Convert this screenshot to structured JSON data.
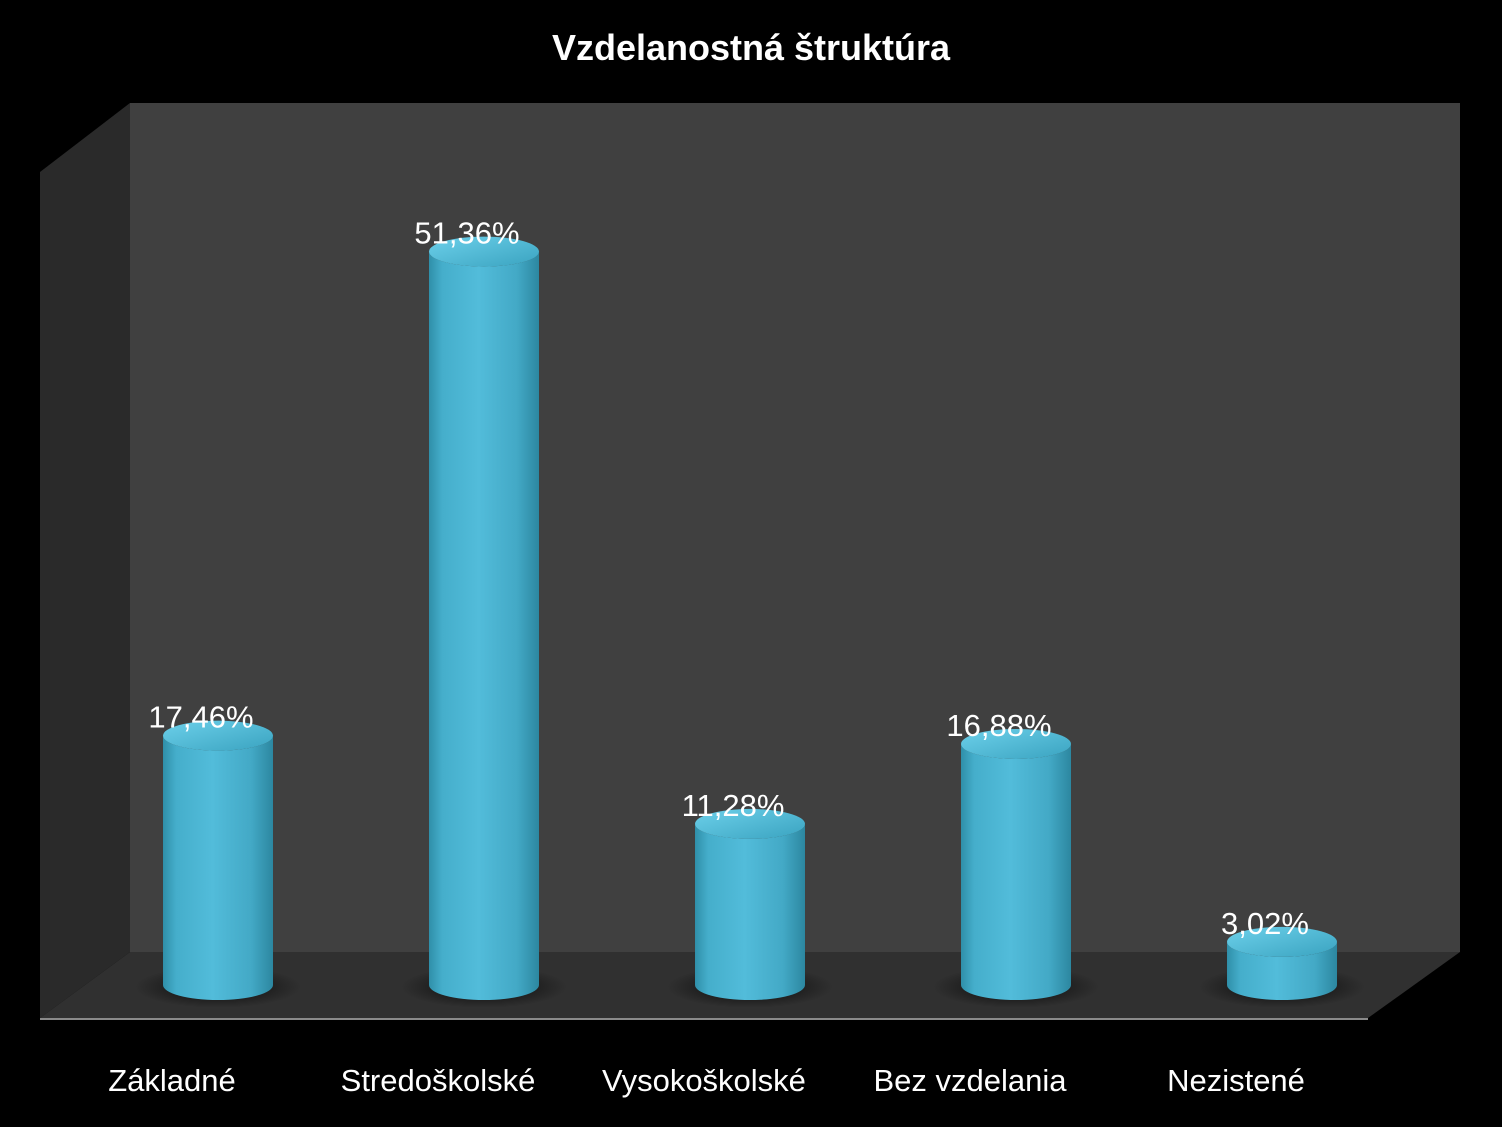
{
  "chart_data": {
    "type": "bar",
    "title": "Vzdelanostná štruktúra",
    "categories": [
      "Základné",
      "Stredoškolské",
      "Vysokoškolské",
      "Bez vzdelania",
      "Nezistené"
    ],
    "values": [
      17.46,
      51.36,
      11.28,
      16.88,
      3.02
    ],
    "value_labels": [
      "17,46%",
      "51,36%",
      "11,28%",
      "16,88%",
      "3,02%"
    ],
    "xlabel": "",
    "ylabel": "",
    "ylim": [
      0,
      60
    ],
    "grid": false,
    "legend": "none",
    "style": "3d-cylinder"
  },
  "colors": {
    "background": "#000000",
    "back_wall": "#404040",
    "side_wall": "#2a2a2a",
    "floor": "#303030",
    "bar": "#4bb8d6"
  }
}
